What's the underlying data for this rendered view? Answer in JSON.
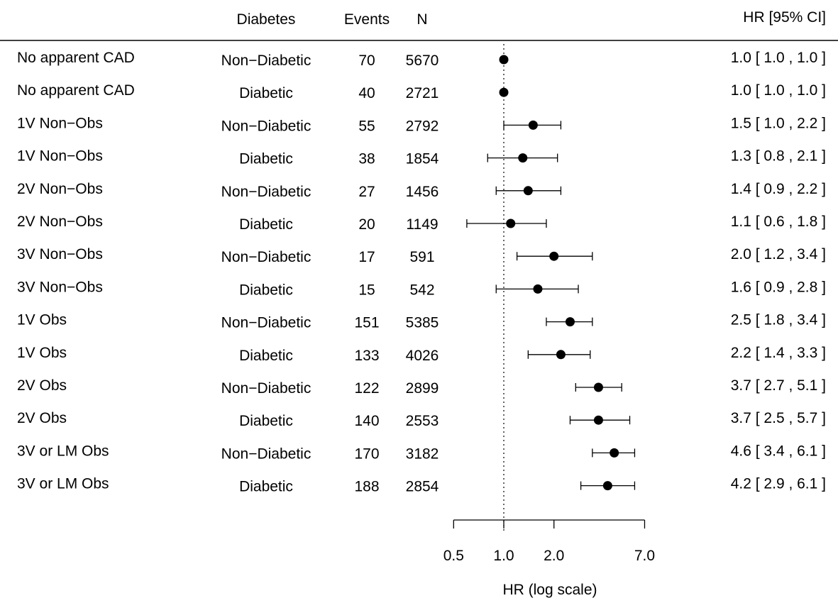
{
  "chart_data": {
    "type": "forest",
    "scale": "log",
    "headers": {
      "diabetes": "Diabetes",
      "events": "Events",
      "n": "N",
      "hr": "HR [95% CI]"
    },
    "xlabel": "HR (log scale)",
    "xticks": [
      {
        "value": 0.5,
        "label": "0.5"
      },
      {
        "value": 1.0,
        "label": "1.0"
      },
      {
        "value": 2.0,
        "label": "2.0"
      },
      {
        "value": 7.0,
        "label": "7.0"
      }
    ],
    "reference_line": 1.0,
    "rows": [
      {
        "group": "No apparent CAD",
        "diabetes": "Non−Diabetic",
        "events": "70",
        "n": "5670",
        "hr": 1.0,
        "lo": 1.0,
        "hi": 1.0,
        "hr_text": "1.0 [ 1.0 , 1.0 ]"
      },
      {
        "group": "No apparent CAD",
        "diabetes": "Diabetic",
        "events": "40",
        "n": "2721",
        "hr": 1.0,
        "lo": 1.0,
        "hi": 1.0,
        "hr_text": "1.0 [ 1.0 , 1.0 ]"
      },
      {
        "group": "1V Non−Obs",
        "diabetes": "Non−Diabetic",
        "events": "55",
        "n": "2792",
        "hr": 1.5,
        "lo": 1.0,
        "hi": 2.2,
        "hr_text": "1.5 [ 1.0 , 2.2 ]"
      },
      {
        "group": "1V Non−Obs",
        "diabetes": "Diabetic",
        "events": "38",
        "n": "1854",
        "hr": 1.3,
        "lo": 0.8,
        "hi": 2.1,
        "hr_text": "1.3 [ 0.8 , 2.1 ]"
      },
      {
        "group": "2V Non−Obs",
        "diabetes": "Non−Diabetic",
        "events": "27",
        "n": "1456",
        "hr": 1.4,
        "lo": 0.9,
        "hi": 2.2,
        "hr_text": "1.4 [ 0.9 , 2.2 ]"
      },
      {
        "group": "2V Non−Obs",
        "diabetes": "Diabetic",
        "events": "20",
        "n": "1149",
        "hr": 1.1,
        "lo": 0.6,
        "hi": 1.8,
        "hr_text": "1.1 [ 0.6 , 1.8 ]"
      },
      {
        "group": "3V Non−Obs",
        "diabetes": "Non−Diabetic",
        "events": "17",
        "n": "591",
        "hr": 2.0,
        "lo": 1.2,
        "hi": 3.4,
        "hr_text": "2.0 [ 1.2 , 3.4 ]"
      },
      {
        "group": "3V Non−Obs",
        "diabetes": "Diabetic",
        "events": "15",
        "n": "542",
        "hr": 1.6,
        "lo": 0.9,
        "hi": 2.8,
        "hr_text": "1.6 [ 0.9 , 2.8 ]"
      },
      {
        "group": "1V Obs",
        "diabetes": "Non−Diabetic",
        "events": "151",
        "n": "5385",
        "hr": 2.5,
        "lo": 1.8,
        "hi": 3.4,
        "hr_text": "2.5 [ 1.8 , 3.4 ]"
      },
      {
        "group": "1V Obs",
        "diabetes": "Diabetic",
        "events": "133",
        "n": "4026",
        "hr": 2.2,
        "lo": 1.4,
        "hi": 3.3,
        "hr_text": "2.2 [ 1.4 , 3.3 ]"
      },
      {
        "group": "2V Obs",
        "diabetes": "Non−Diabetic",
        "events": "122",
        "n": "2899",
        "hr": 3.7,
        "lo": 2.7,
        "hi": 5.1,
        "hr_text": "3.7 [ 2.7 , 5.1 ]"
      },
      {
        "group": "2V Obs",
        "diabetes": "Diabetic",
        "events": "140",
        "n": "2553",
        "hr": 3.7,
        "lo": 2.5,
        "hi": 5.7,
        "hr_text": "3.7 [ 2.5 , 5.7 ]"
      },
      {
        "group": "3V or LM Obs",
        "diabetes": "Non−Diabetic",
        "events": "170",
        "n": "3182",
        "hr": 4.6,
        "lo": 3.4,
        "hi": 6.1,
        "hr_text": "4.6 [ 3.4 , 6.1 ]"
      },
      {
        "group": "3V or LM Obs",
        "diabetes": "Diabetic",
        "events": "188",
        "n": "2854",
        "hr": 4.2,
        "lo": 2.9,
        "hi": 6.1,
        "hr_text": "4.2 [ 2.9 , 6.1 ]"
      }
    ]
  }
}
